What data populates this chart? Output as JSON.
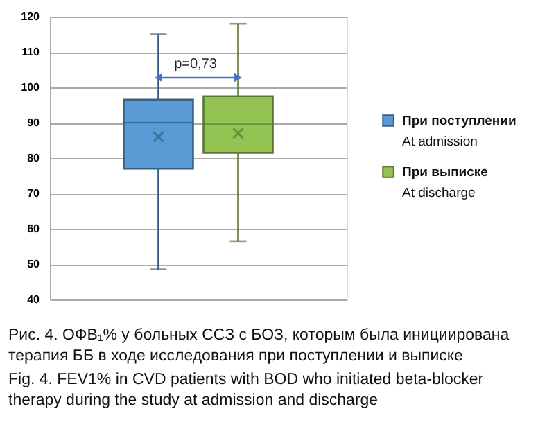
{
  "chart_data": {
    "type": "box",
    "title": "Рис. 4. ОФВ₁% у больных ССЗ с БОЗ, которым была инициирована терапия ББ в ходе исследования при поступлении и выписке",
    "subtitle": "Fig. 4. FEV1% in CVD patients with BOD who initiated beta-blocker therapy during the study at admission and discharge",
    "categories": [
      null
    ],
    "series": [
      {
        "name": "При поступлении\nAt admission",
        "color": "#5b9bd5",
        "boxes": [
          {
            "low": 48.5,
            "q1": 77,
            "median": 90,
            "q3": 96.5,
            "high": 115,
            "mean": 86
          }
        ]
      },
      {
        "name": "При выписке\nAt discharge",
        "color": "#92c353",
        "boxes": [
          {
            "low": 56.5,
            "q1": 81.5,
            "median": 89.5,
            "q3": 97.5,
            "high": 118,
            "mean": 87
          }
        ]
      }
    ],
    "annotations": [
      "p=0,73"
    ],
    "ylim": [
      40,
      120
    ],
    "yticks": [
      40,
      50,
      60,
      70,
      80,
      90,
      100,
      110,
      120
    ],
    "grid": "y",
    "legend": "right",
    "tick_labels": "y"
  }
}
